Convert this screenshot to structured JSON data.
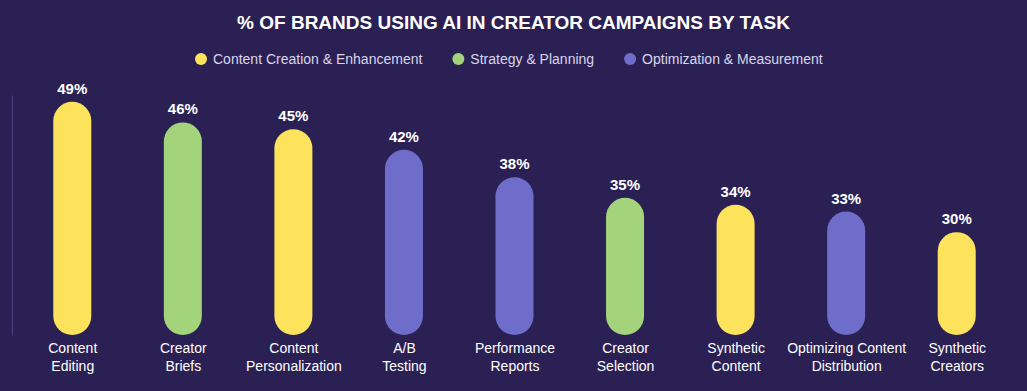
{
  "chart_data": {
    "type": "bar",
    "title": "% OF BRANDS USING AI IN CREATOR CAMPAIGNS BY TASK",
    "categories": [
      "Content Editing",
      "Creator Briefs",
      "Content Personalization",
      "A/B Testing",
      "Performance Reports",
      "Creator Selection",
      "Synthetic Content",
      "Optimizing Content Distribution",
      "Synthetic Creators"
    ],
    "series": [
      {
        "name": "Content Creation & Enhancement",
        "color": "#fde35c",
        "values": [
          49,
          null,
          45,
          null,
          null,
          null,
          34,
          null,
          30
        ],
        "value_labels": [
          "49%",
          null,
          "45%",
          null,
          null,
          null,
          "34%",
          null,
          "30%"
        ]
      },
      {
        "name": "Strategy & Planning",
        "color": "#a3d47c",
        "values": [
          null,
          46,
          null,
          null,
          null,
          35,
          null,
          null,
          null
        ],
        "value_labels": [
          null,
          "46%",
          null,
          null,
          null,
          "35%",
          null,
          null,
          null
        ]
      },
      {
        "name": "Optimization & Measurement",
        "color": "#6e6dc9",
        "values": [
          null,
          null,
          null,
          42,
          38,
          null,
          null,
          33,
          null
        ],
        "value_labels": [
          null,
          null,
          null,
          "42%",
          "38%",
          null,
          null,
          "33%",
          null
        ]
      }
    ],
    "ylim": [
      15,
      50
    ],
    "yticks": [],
    "tick_labels": "x",
    "data_labels": true,
    "legend": "top"
  }
}
